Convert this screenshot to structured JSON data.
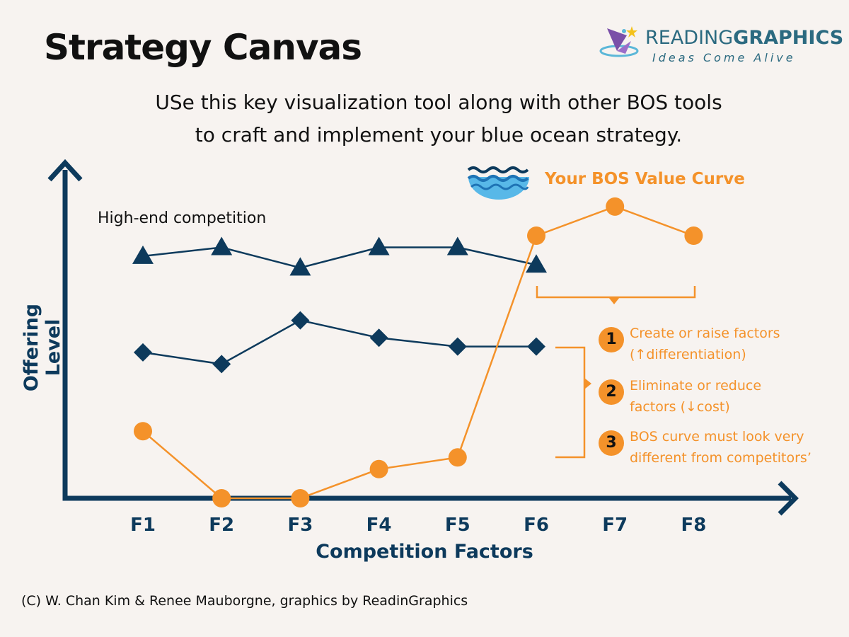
{
  "title": "Strategy Canvas",
  "subtitle_line1": "USe this key visualization tool along with other BOS tools",
  "subtitle_line2": "to craft and implement your blue ocean strategy.",
  "logo": {
    "brand_light": "READING",
    "brand_bold": "GRAPHICS",
    "tagline": "Ideas Come Alive"
  },
  "credit": "(C) W. Chan Kim & Renee Mauborgne, graphics by ReadinGraphics",
  "notes": [
    {
      "num": "1",
      "line1": "Create or raise factors",
      "line2": "(↑differentiation)"
    },
    {
      "num": "2",
      "line1": "Eliminate or reduce",
      "line2": "factors (↓cost)"
    },
    {
      "num": "3",
      "line1": "BOS curve must look very",
      "line2": "different from competitors’"
    }
  ],
  "colors": {
    "navy": "#0d3a5c",
    "orange": "#f4922a",
    "background": "#f7f3f0"
  },
  "icons": {
    "ocean": "ocean-wave-icon"
  },
  "chart_data": {
    "type": "line",
    "title": "",
    "xlabel": "Competition Factors",
    "ylabel": "Offering Level",
    "categories": [
      "F1",
      "F2",
      "F3",
      "F4",
      "F5",
      "F6",
      "F7",
      "F8"
    ],
    "ylim": [
      0,
      11.5
    ],
    "grid": false,
    "series": [
      {
        "name": "High-end competition",
        "marker": "triangle",
        "color": "#0d3a5c",
        "values": [
          8.3,
          8.6,
          7.9,
          8.6,
          8.6,
          8.0,
          null,
          null
        ]
      },
      {
        "marker": "diamond",
        "color": "#0d3a5c",
        "values": [
          5.0,
          4.6,
          6.1,
          5.5,
          5.2,
          5.2,
          null,
          null
        ]
      },
      {
        "name": "Your BOS Value Curve",
        "marker": "circle",
        "color": "#f4922a",
        "values": [
          2.3,
          0,
          0,
          1.0,
          1.4,
          9.0,
          10.0,
          9.0
        ]
      }
    ]
  }
}
